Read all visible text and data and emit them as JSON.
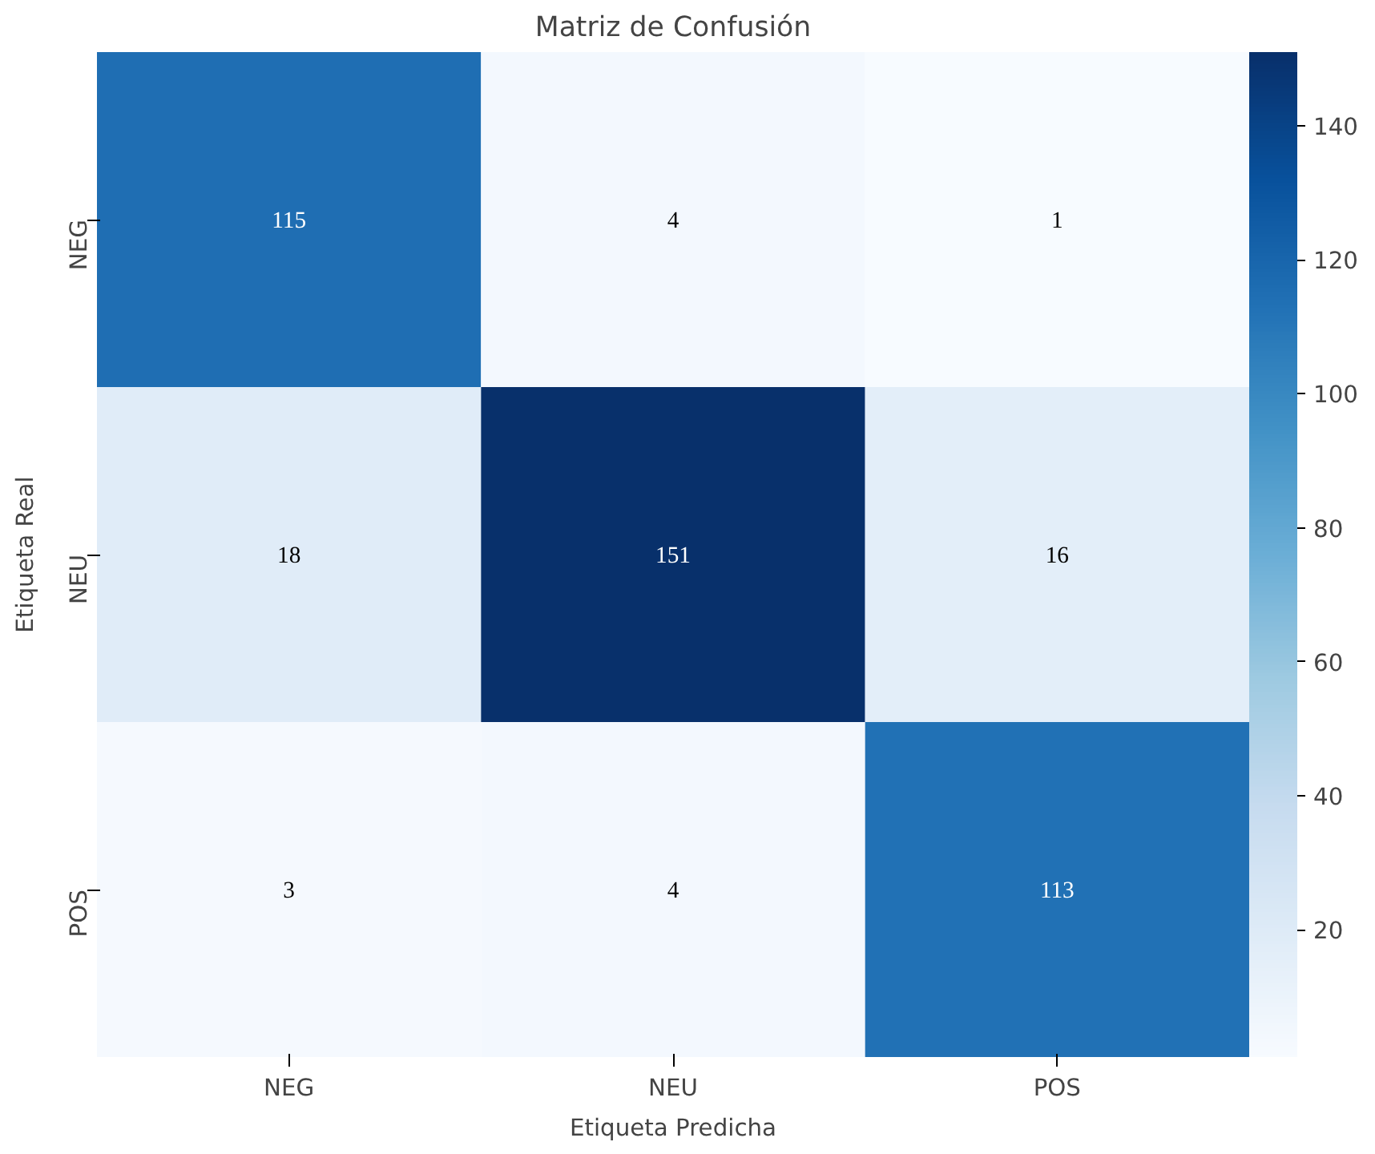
{
  "chart_data": {
    "type": "heatmap",
    "title": "Matriz de Confusión",
    "xlabel": "Etiqueta Predicha",
    "ylabel": "Etiqueta Real",
    "categories": [
      "NEG",
      "NEU",
      "POS"
    ],
    "y_categories": [
      "NEG",
      "NEU",
      "POS"
    ],
    "cells": [
      [
        115,
        4,
        1
      ],
      [
        18,
        151,
        16
      ],
      [
        3,
        4,
        113
      ]
    ],
    "clim": [
      1,
      151
    ],
    "cticks": [
      20,
      40,
      60,
      80,
      100,
      120,
      140
    ],
    "data_labels": true
  }
}
